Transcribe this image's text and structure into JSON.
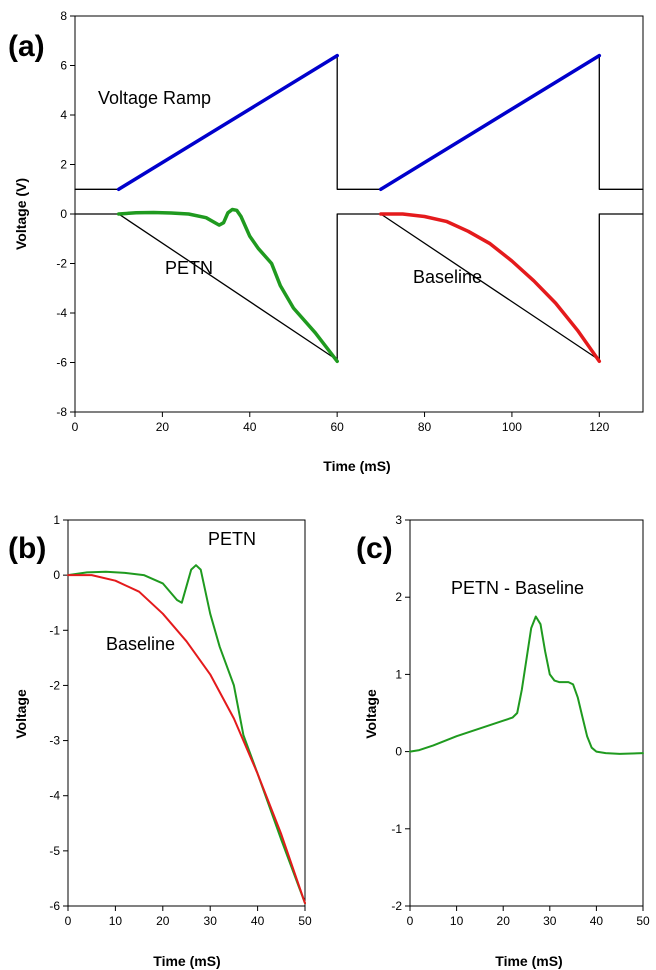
{
  "chart_data": [
    {
      "type": "line",
      "panel_label": "(a)",
      "xlabel": "Time (mS)",
      "ylabel": "Voltage (V)",
      "xlim": [
        0,
        130
      ],
      "ylim": [
        -8,
        8
      ],
      "xticks": [
        0,
        20,
        40,
        60,
        80,
        100,
        120
      ],
      "yticks": [
        -8,
        -6,
        -4,
        -2,
        0,
        2,
        4,
        6,
        8
      ],
      "annotations": [
        "Voltage Ramp",
        "PETN",
        "Baseline"
      ],
      "series": [
        {
          "color": "#000000",
          "x": [
            0,
            10,
            10,
            60,
            60,
            70,
            70,
            120,
            120,
            130
          ],
          "y": [
            1,
            1,
            1,
            6.4,
            1,
            1,
            1,
            6.4,
            1,
            1
          ]
        },
        {
          "color": "#000000",
          "x": [
            0,
            10,
            10,
            60,
            60,
            70,
            70,
            120,
            120,
            130
          ],
          "y": [
            0,
            0,
            0,
            -5.9,
            0,
            0,
            0,
            -5.9,
            0,
            0
          ]
        },
        {
          "color": "#0000cc",
          "x": [
            10,
            60
          ],
          "y": [
            1.0,
            6.4
          ]
        },
        {
          "color": "#0000cc",
          "x": [
            70,
            120
          ],
          "y": [
            1.0,
            6.4
          ]
        },
        {
          "name": "PETN",
          "color": "#1f9a1f",
          "x": [
            10,
            14,
            18,
            22,
            26,
            30,
            33,
            34,
            35,
            36,
            37,
            38,
            40,
            42,
            45,
            47,
            50,
            55,
            60
          ],
          "y": [
            0,
            0.05,
            0.06,
            0.04,
            0,
            -0.15,
            -0.45,
            -0.35,
            0.05,
            0.18,
            0.15,
            -0.1,
            -0.9,
            -1.4,
            -2.0,
            -2.9,
            -3.8,
            -4.8,
            -5.95
          ]
        },
        {
          "name": "Baseline",
          "color": "#e41a1c",
          "x": [
            70,
            75,
            80,
            85,
            90,
            95,
            100,
            105,
            110,
            115,
            120
          ],
          "y": [
            0,
            0,
            -0.1,
            -0.3,
            -0.7,
            -1.2,
            -1.9,
            -2.7,
            -3.6,
            -4.7,
            -5.95
          ]
        }
      ]
    },
    {
      "type": "line",
      "panel_label": "(b)",
      "xlabel": "Time (mS)",
      "ylabel": "Voltage",
      "xlim": [
        0,
        50
      ],
      "ylim": [
        -6,
        1
      ],
      "xticks": [
        0,
        10,
        20,
        30,
        40,
        50
      ],
      "yticks": [
        -6,
        -5,
        -4,
        -3,
        -2,
        -1,
        0,
        1
      ],
      "annotations": [
        "PETN",
        "Baseline"
      ],
      "series": [
        {
          "name": "PETN",
          "color": "#1f9a1f",
          "x": [
            0,
            4,
            8,
            12,
            16,
            20,
            23,
            24,
            25,
            26,
            27,
            28,
            30,
            32,
            35,
            37,
            40,
            45,
            50
          ],
          "y": [
            0,
            0.05,
            0.06,
            0.04,
            0,
            -0.15,
            -0.45,
            -0.5,
            -0.2,
            0.1,
            0.18,
            0.1,
            -0.7,
            -1.3,
            -2.0,
            -2.9,
            -3.6,
            -4.8,
            -5.95
          ]
        },
        {
          "name": "Baseline",
          "color": "#e41a1c",
          "x": [
            0,
            5,
            10,
            15,
            20,
            25,
            30,
            35,
            40,
            45,
            50
          ],
          "y": [
            0,
            0,
            -0.1,
            -0.3,
            -0.7,
            -1.2,
            -1.8,
            -2.6,
            -3.6,
            -4.7,
            -5.95
          ]
        }
      ]
    },
    {
      "type": "line",
      "panel_label": "(c)",
      "xlabel": "Time (mS)",
      "ylabel": "Voltage",
      "xlim": [
        0,
        50
      ],
      "ylim": [
        -2,
        3
      ],
      "xticks": [
        0,
        10,
        20,
        30,
        40,
        50
      ],
      "yticks": [
        -2,
        -1,
        0,
        1,
        2,
        3
      ],
      "annotations": [
        "PETN - Baseline"
      ],
      "series": [
        {
          "name": "PETN - Baseline",
          "color": "#1f9a1f",
          "x": [
            0,
            2,
            5,
            10,
            15,
            20,
            22,
            23,
            24,
            25,
            26,
            27,
            28,
            29,
            30,
            31,
            32,
            33,
            34,
            35,
            36,
            37,
            38,
            39,
            40,
            42,
            45,
            50
          ],
          "y": [
            0,
            0.02,
            0.08,
            0.2,
            0.3,
            0.4,
            0.44,
            0.5,
            0.8,
            1.2,
            1.6,
            1.75,
            1.65,
            1.3,
            1.0,
            0.92,
            0.9,
            0.9,
            0.9,
            0.87,
            0.7,
            0.45,
            0.2,
            0.05,
            0.0,
            -0.02,
            -0.03,
            -0.02
          ]
        }
      ]
    }
  ]
}
